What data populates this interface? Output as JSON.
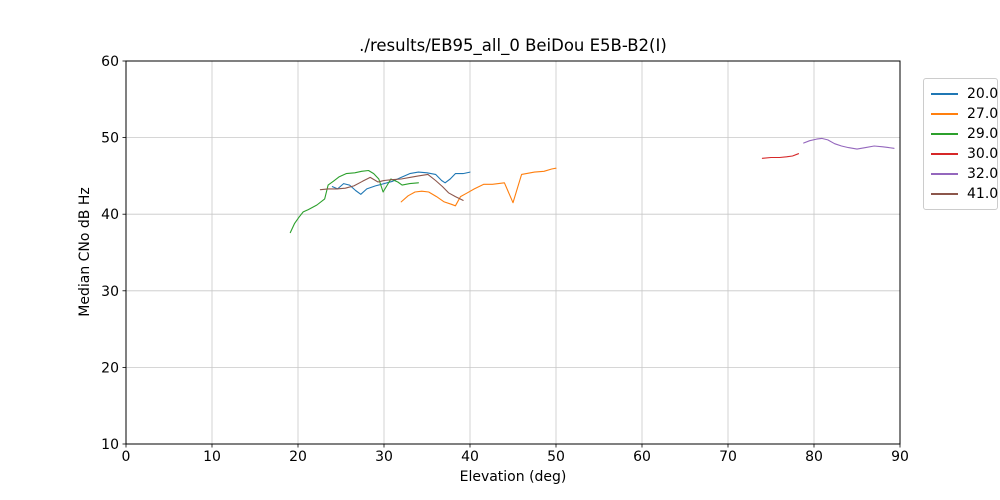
{
  "chart_data": {
    "type": "line",
    "title": "./results/EB95_all_0 BeiDou E5B-B2(I)",
    "xlabel": "Elevation (deg)",
    "ylabel": "Median CNo dB Hz",
    "xlim": [
      0,
      90
    ],
    "ylim": [
      10,
      60
    ],
    "xticks": [
      0,
      10,
      20,
      30,
      40,
      50,
      60,
      70,
      80,
      90
    ],
    "yticks": [
      10,
      20,
      30,
      40,
      50,
      60
    ],
    "grid": true,
    "grid_color": "#c8c8c8",
    "spine_color": "#000000",
    "legend_position": "outside upper right",
    "series": [
      {
        "name": "20.0",
        "color": "#1f77b4",
        "points": [
          [
            24.0,
            43.6
          ],
          [
            24.6,
            43.3
          ],
          [
            25.3,
            44.0
          ],
          [
            26.0,
            43.8
          ],
          [
            26.7,
            43.1
          ],
          [
            27.3,
            42.6
          ],
          [
            28.0,
            43.3
          ],
          [
            29.0,
            43.7
          ],
          [
            30.0,
            44.0
          ],
          [
            31.0,
            44.3
          ],
          [
            32.0,
            44.8
          ],
          [
            33.0,
            45.3
          ],
          [
            34.0,
            45.5
          ],
          [
            35.0,
            45.4
          ],
          [
            36.0,
            45.2
          ],
          [
            36.7,
            44.4
          ],
          [
            37.1,
            44.1
          ],
          [
            37.7,
            44.6
          ],
          [
            38.3,
            45.3
          ],
          [
            39.2,
            45.3
          ],
          [
            40.0,
            45.5
          ]
        ]
      },
      {
        "name": "27.0",
        "color": "#ff7f0e",
        "points": [
          [
            32.0,
            41.6
          ],
          [
            32.8,
            42.4
          ],
          [
            33.6,
            42.9
          ],
          [
            34.4,
            43.0
          ],
          [
            35.2,
            42.9
          ],
          [
            36.1,
            42.3
          ],
          [
            37.0,
            41.6
          ],
          [
            37.8,
            41.3
          ],
          [
            38.3,
            41.1
          ],
          [
            38.9,
            42.3
          ],
          [
            39.7,
            42.8
          ],
          [
            40.5,
            43.3
          ],
          [
            41.6,
            43.9
          ],
          [
            42.6,
            43.9
          ],
          [
            44.0,
            44.1
          ],
          [
            45.0,
            41.5
          ],
          [
            46.0,
            45.2
          ],
          [
            47.5,
            45.5
          ],
          [
            48.6,
            45.6
          ],
          [
            49.5,
            45.9
          ],
          [
            50.0,
            46.0
          ]
        ]
      },
      {
        "name": "29.0",
        "color": "#2ca02c",
        "points": [
          [
            19.1,
            37.6
          ],
          [
            19.6,
            38.8
          ],
          [
            20.1,
            39.6
          ],
          [
            20.6,
            40.3
          ],
          [
            21.2,
            40.6
          ],
          [
            22.2,
            41.2
          ],
          [
            23.1,
            42.0
          ],
          [
            23.5,
            43.8
          ],
          [
            24.1,
            44.3
          ],
          [
            24.8,
            44.9
          ],
          [
            25.6,
            45.3
          ],
          [
            26.6,
            45.4
          ],
          [
            27.4,
            45.6
          ],
          [
            28.2,
            45.7
          ],
          [
            28.8,
            45.3
          ],
          [
            29.4,
            44.6
          ],
          [
            29.9,
            42.9
          ],
          [
            30.8,
            44.6
          ],
          [
            31.6,
            44.2
          ],
          [
            32.1,
            43.8
          ],
          [
            33.0,
            44.0
          ],
          [
            34.0,
            44.1
          ]
        ]
      },
      {
        "name": "30.0",
        "color": "#d62728",
        "points": [
          [
            74.0,
            47.3
          ],
          [
            75.0,
            47.4
          ],
          [
            76.0,
            47.4
          ],
          [
            76.8,
            47.5
          ],
          [
            77.5,
            47.6
          ],
          [
            78.2,
            47.9
          ]
        ]
      },
      {
        "name": "32.0",
        "color": "#9467bd",
        "points": [
          [
            78.8,
            49.3
          ],
          [
            79.5,
            49.6
          ],
          [
            80.3,
            49.8
          ],
          [
            80.9,
            49.9
          ],
          [
            81.6,
            49.7
          ],
          [
            82.4,
            49.2
          ],
          [
            83.2,
            48.9
          ],
          [
            84.0,
            48.7
          ],
          [
            85.0,
            48.5
          ],
          [
            86.0,
            48.7
          ],
          [
            87.0,
            48.9
          ],
          [
            88.0,
            48.8
          ],
          [
            88.7,
            48.7
          ],
          [
            89.3,
            48.6
          ]
        ]
      },
      {
        "name": "41.0",
        "color": "#8c564b",
        "points": [
          [
            22.6,
            43.2
          ],
          [
            23.5,
            43.3
          ],
          [
            24.5,
            43.3
          ],
          [
            25.5,
            43.4
          ],
          [
            26.5,
            43.7
          ],
          [
            27.5,
            44.3
          ],
          [
            28.4,
            44.8
          ],
          [
            29.3,
            44.2
          ],
          [
            30.0,
            44.4
          ],
          [
            30.9,
            44.5
          ],
          [
            32.0,
            44.6
          ],
          [
            33.0,
            44.8
          ],
          [
            34.0,
            45.0
          ],
          [
            35.1,
            45.2
          ],
          [
            36.0,
            44.4
          ],
          [
            36.8,
            43.6
          ],
          [
            37.5,
            42.8
          ],
          [
            38.3,
            42.3
          ],
          [
            39.2,
            41.8
          ]
        ]
      }
    ]
  }
}
